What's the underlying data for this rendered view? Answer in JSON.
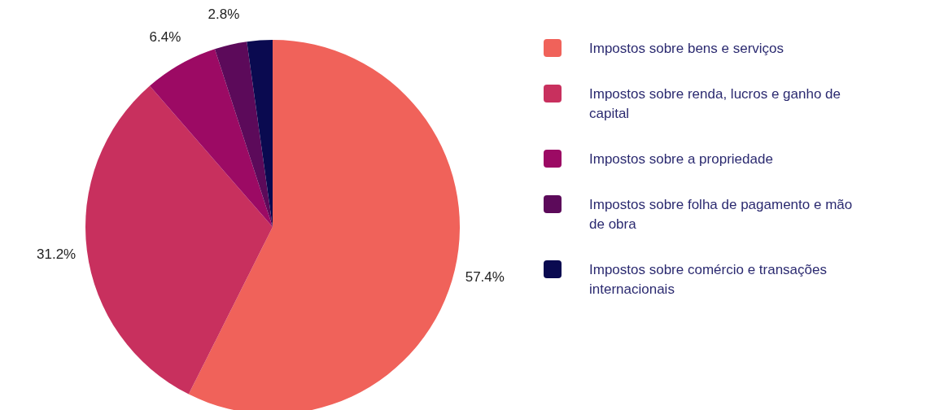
{
  "chart_data": {
    "type": "pie",
    "categories": [
      "Impostos sobre bens e serviços",
      "Impostos sobre renda, lucros e ganho de capital",
      "Impostos sobre a propriedade",
      "Impostos sobre folha de pagamento e mão de obra",
      "Impostos sobre comércio e transações internacionais"
    ],
    "values": [
      57.4,
      31.2,
      6.4,
      2.8,
      2.2
    ],
    "value_labels": [
      "57.4%",
      "31.2%",
      "6.4%",
      "2.8%",
      null
    ],
    "colors": [
      "#f0625a",
      "#c8305e",
      "#9c0a64",
      "#5c0a5a",
      "#0a0a50"
    ],
    "legend": "right"
  }
}
